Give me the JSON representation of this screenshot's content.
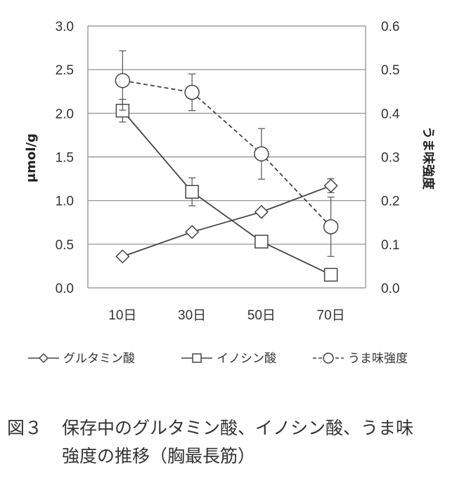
{
  "chart_data": {
    "type": "line",
    "categories": [
      "10日",
      "30日",
      "50日",
      "70日"
    ],
    "left_axis": {
      "label": "μmol/g",
      "range": [
        0,
        3.0
      ],
      "ticks": [
        "0.0",
        "0.5",
        "1.0",
        "1.5",
        "2.0",
        "2.5",
        "3.0"
      ]
    },
    "right_axis": {
      "label": "うま味強度",
      "range": [
        0,
        0.6
      ],
      "ticks": [
        "0.0",
        "0.1",
        "0.2",
        "0.3",
        "0.4",
        "0.5",
        "0.6"
      ]
    },
    "grid": true,
    "legend_position": "bottom",
    "series": [
      {
        "name": "グルタミン酸",
        "axis": "left",
        "marker": "diamond",
        "line": "solid",
        "values": [
          0.36,
          0.64,
          0.87,
          1.17
        ],
        "error": [
          0,
          0,
          0,
          0.08
        ]
      },
      {
        "name": "イノシン酸",
        "axis": "left",
        "marker": "square",
        "line": "solid",
        "values": [
          2.03,
          1.1,
          0.53,
          0.15
        ],
        "error": [
          0.13,
          0.16,
          0,
          0
        ]
      },
      {
        "name": "うま味強度",
        "axis": "right",
        "marker": "circle",
        "line": "dashed",
        "values": [
          0.475,
          0.448,
          0.307,
          0.14
        ],
        "error": [
          0.068,
          0.042,
          0.058,
          0.068
        ]
      }
    ]
  },
  "caption": {
    "label": "図３",
    "line1": "保存中のグルタミン酸、イノシン酸、うま味",
    "line2": "強度の推移（胸最長筋）"
  }
}
